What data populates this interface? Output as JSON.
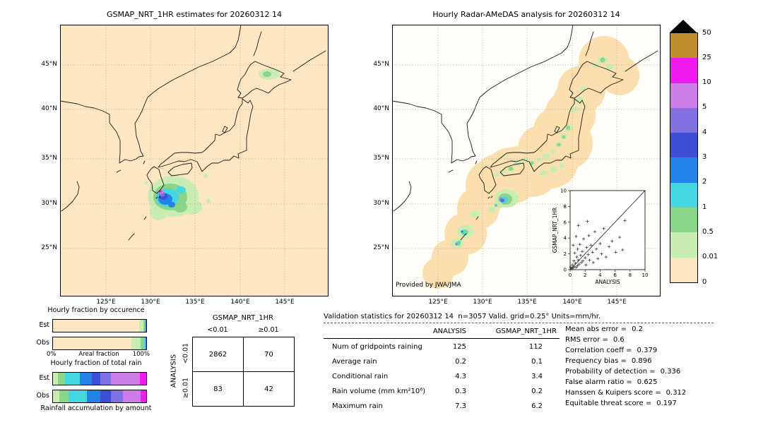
{
  "left_map": {
    "title": "GSMAP_NRT_1HR estimates for 20260312 14",
    "lat_labels": [
      "45°N",
      "40°N",
      "35°N",
      "30°N",
      "25°N"
    ],
    "lon_labels": [
      "125°E",
      "130°E",
      "135°E",
      "140°E",
      "145°E"
    ]
  },
  "right_map": {
    "title": "Hourly Radar-AMeDAS analysis for 20260312 14",
    "lat_labels": [
      "45°N",
      "40°N",
      "35°N",
      "30°N",
      "25°N"
    ],
    "lon_labels": [
      "125°E",
      "130°E",
      "135°E",
      "140°E",
      "145°E"
    ],
    "credit": "Provided by JWA/JMA"
  },
  "inset": {
    "xlabel": "ANALYSIS",
    "ylabel": "GSMAP_NRT_1HR",
    "ticks": [
      "0",
      "2",
      "4",
      "6",
      "8",
      "10"
    ]
  },
  "colorbar": {
    "boundary_labels": [
      "50",
      "25",
      "10",
      "5",
      "4",
      "3",
      "2",
      "1",
      "0.5",
      "0.01",
      "0"
    ],
    "segment_colors_top_to_bottom": [
      "#bd8e2b",
      "#f019f0",
      "#cc7de8",
      "#8070e2",
      "#3c4ed6",
      "#2183e8",
      "#42d7e2",
      "#8ad689",
      "#c8ecb2",
      "#fce7c2"
    ],
    "over_color": "#000000"
  },
  "occurrence": {
    "title": "Hourly fraction by occurence",
    "rows": [
      {
        "label": "Est",
        "segments": [
          {
            "color": "#fce7c2",
            "pct": 92.5
          },
          {
            "color": "#c8ecb2",
            "pct": 4.5
          },
          {
            "color": "#8ad689",
            "pct": 1.5
          },
          {
            "color": "#42d7e2",
            "pct": 1.0
          },
          {
            "color": "#2183e8",
            "pct": 0.5
          }
        ]
      },
      {
        "label": "Obs",
        "segments": [
          {
            "color": "#fce7c2",
            "pct": 84
          },
          {
            "color": "#c8ecb2",
            "pct": 10
          },
          {
            "color": "#8ad689",
            "pct": 3.5
          },
          {
            "color": "#42d7e2",
            "pct": 1.5
          },
          {
            "color": "#2183e8",
            "pct": 0.7
          },
          {
            "color": "#3c4ed6",
            "pct": 0.3
          }
        ]
      }
    ],
    "axis": {
      "left": "0%",
      "center": "Areal fraction",
      "right": "100%"
    }
  },
  "total_rain": {
    "title": "Hourly fraction of total rain",
    "rows": [
      {
        "label": "Est",
        "segments": [
          {
            "color": "#c8ecb2",
            "pct": 5
          },
          {
            "color": "#8ad689",
            "pct": 8
          },
          {
            "color": "#42d7e2",
            "pct": 16
          },
          {
            "color": "#2183e8",
            "pct": 13
          },
          {
            "color": "#3c4ed6",
            "pct": 9
          },
          {
            "color": "#8070e2",
            "pct": 11
          },
          {
            "color": "#cc7de8",
            "pct": 31
          },
          {
            "color": "#f019f0",
            "pct": 7
          }
        ]
      },
      {
        "label": "Obs",
        "segments": [
          {
            "color": "#c8ecb2",
            "pct": 7
          },
          {
            "color": "#8ad689",
            "pct": 10
          },
          {
            "color": "#42d7e2",
            "pct": 19
          },
          {
            "color": "#2183e8",
            "pct": 15
          },
          {
            "color": "#3c4ed6",
            "pct": 11
          },
          {
            "color": "#8070e2",
            "pct": 13
          },
          {
            "color": "#cc7de8",
            "pct": 19
          },
          {
            "color": "#f019f0",
            "pct": 6
          }
        ]
      }
    ],
    "caption": "Rainfall accumulation by amount"
  },
  "contingency": {
    "col_header": "GSMAP_NRT_1HR",
    "row_header": "ANALYSIS",
    "col_labels": [
      "<0.01",
      "≥0.01"
    ],
    "row_labels": [
      "<0.01",
      "≥0.01"
    ],
    "cells": [
      [
        "2862",
        "70"
      ],
      [
        "83",
        "42"
      ]
    ]
  },
  "validation": {
    "title": "Validation statistics for 20260312 14  n=3057 Valid. grid=0.25° Units=mm/hr.",
    "columns": [
      "ANALYSIS",
      "GSMAP_NRT_1HR"
    ],
    "rows": [
      {
        "label": "Num of gridpoints raining",
        "analysis": "125",
        "gsmap": "112"
      },
      {
        "label": "Average rain",
        "analysis": "0.2",
        "gsmap": "0.1"
      },
      {
        "label": "Conditional rain",
        "analysis": "4.3",
        "gsmap": "3.4"
      },
      {
        "label": "Rain volume (mm km²10⁶)",
        "analysis": "0.3",
        "gsmap": "0.2"
      },
      {
        "label": "Maximum rain",
        "analysis": "7.3",
        "gsmap": "6.2"
      }
    ],
    "metrics": [
      {
        "label": "Mean abs error =",
        "value": "0.2"
      },
      {
        "label": "RMS error =",
        "value": "0.6"
      },
      {
        "label": "Correlation coeff =",
        "value": "0.379"
      },
      {
        "label": "Frequency bias =",
        "value": "0.896"
      },
      {
        "label": "Probability of detection =",
        "value": "0.336"
      },
      {
        "label": "False alarm ratio =",
        "value": "0.625"
      },
      {
        "label": "Hanssen & Kuipers score =",
        "value": "0.312"
      },
      {
        "label": "Equitable threat score =",
        "value": "0.197"
      }
    ]
  },
  "chart_data": [
    {
      "type": "table",
      "title": "Contingency table",
      "x_header": "GSMAP_NRT_1HR",
      "y_header": "ANALYSIS",
      "columns": [
        "<0.01",
        "≥0.01"
      ],
      "rows": [
        "<0.01",
        "≥0.01"
      ],
      "values": [
        [
          2862,
          70
        ],
        [
          83,
          42
        ]
      ]
    },
    {
      "type": "table",
      "title": "Validation statistics for 20260312 14 n=3057 Valid. grid=0.25° Units=mm/hr.",
      "columns": [
        "ANALYSIS",
        "GSMAP_NRT_1HR"
      ],
      "row_labels": [
        "Num of gridpoints raining",
        "Average rain",
        "Conditional rain",
        "Rain volume (mm km²10⁶)",
        "Maximum rain"
      ],
      "values": [
        [
          125,
          112
        ],
        [
          0.2,
          0.1
        ],
        [
          4.3,
          3.4
        ],
        [
          0.3,
          0.2
        ],
        [
          7.3,
          6.2
        ]
      ]
    },
    {
      "type": "scatter",
      "title": "GSMAP_NRT_1HR vs ANALYSIS",
      "xlabel": "ANALYSIS",
      "ylabel": "GSMAP_NRT_1HR",
      "xlim": [
        0,
        10
      ],
      "ylim": [
        0,
        10
      ],
      "diagonal": true,
      "points": [
        [
          0.1,
          0.3
        ],
        [
          0.2,
          0.1
        ],
        [
          0.3,
          0.6
        ],
        [
          0.4,
          0.2
        ],
        [
          0.4,
          3.1
        ],
        [
          0.5,
          1.1
        ],
        [
          0.5,
          0.4
        ],
        [
          0.6,
          2.1
        ],
        [
          0.7,
          0.8
        ],
        [
          0.8,
          0.3
        ],
        [
          0.8,
          4.2
        ],
        [
          0.9,
          1.6
        ],
        [
          1.0,
          0.5
        ],
        [
          1.0,
          2.6
        ],
        [
          1.1,
          1.2
        ],
        [
          1.1,
          5.6
        ],
        [
          1.2,
          0.7
        ],
        [
          1.3,
          3.2
        ],
        [
          1.4,
          1.8
        ],
        [
          1.5,
          0.9
        ],
        [
          1.6,
          2.3
        ],
        [
          1.7,
          1.1
        ],
        [
          1.8,
          3.9
        ],
        [
          2.0,
          1.5
        ],
        [
          2.1,
          0.6
        ],
        [
          2.2,
          2.8
        ],
        [
          2.3,
          6.1
        ],
        [
          2.4,
          1.9
        ],
        [
          2.5,
          4.3
        ],
        [
          2.6,
          1.2
        ],
        [
          2.8,
          3.1
        ],
        [
          3.0,
          2.2
        ],
        [
          3.1,
          0.9
        ],
        [
          3.3,
          4.8
        ],
        [
          3.5,
          2.6
        ],
        [
          3.7,
          1.4
        ],
        [
          4.0,
          3.3
        ],
        [
          4.2,
          2.0
        ],
        [
          4.5,
          5.2
        ],
        [
          4.8,
          1.6
        ],
        [
          5.2,
          2.9
        ],
        [
          5.6,
          3.6
        ],
        [
          6.1,
          2.2
        ],
        [
          6.6,
          4.1
        ],
        [
          7.0,
          2.5
        ],
        [
          7.3,
          6.2
        ]
      ]
    },
    {
      "type": "bar",
      "subtype": "stacked-horizontal-pct",
      "title": "Hourly fraction by occurence",
      "categories": [
        "Est",
        "Obs"
      ],
      "values_pct": [
        [
          92.5,
          4.5,
          1.5,
          1.0,
          0.5
        ],
        [
          84,
          10,
          3.5,
          1.5,
          0.7,
          0.3
        ]
      ]
    },
    {
      "type": "bar",
      "subtype": "stacked-horizontal-pct",
      "title": "Hourly fraction of total rain",
      "categories": [
        "Est",
        "Obs"
      ],
      "values_pct": [
        [
          5,
          8,
          16,
          13,
          9,
          11,
          31,
          7
        ],
        [
          7,
          10,
          19,
          15,
          11,
          13,
          19,
          6
        ]
      ]
    },
    {
      "type": "heatmap",
      "title": "Rain-rate color scale (mm/hr)",
      "boundaries": [
        0,
        0.01,
        0.5,
        1,
        2,
        3,
        4,
        5,
        10,
        25,
        50
      ],
      "colors_low_to_high": [
        "#fce7c2",
        "#c8ecb2",
        "#8ad689",
        "#42d7e2",
        "#2183e8",
        "#3c4ed6",
        "#8070e2",
        "#cc7de8",
        "#f019f0",
        "#bd8e2b"
      ],
      "over_color": "#000000"
    }
  ]
}
